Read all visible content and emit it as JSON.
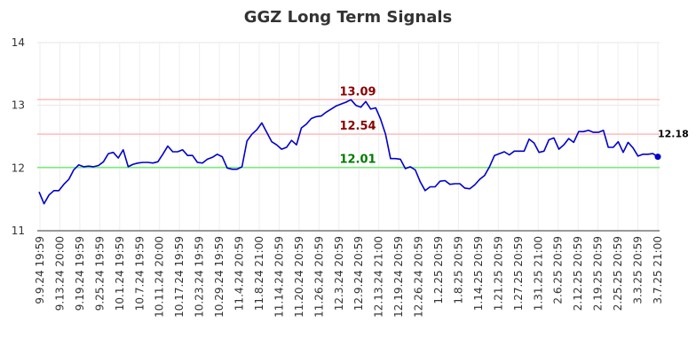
{
  "chart_data": {
    "type": "line",
    "title": "GGZ Long Term Signals",
    "xlabel": "",
    "ylabel": "",
    "ylim": [
      11,
      14
    ],
    "yticks": [
      11,
      12,
      13,
      14
    ],
    "grid": true,
    "x_tick_labels": [
      "9.9.24 19:59",
      "9.13.24 20:00",
      "9.19.24 19:59",
      "9.25.24 19:59",
      "10.1.24 19:59",
      "10.7.24 19:59",
      "10.11.24 20:00",
      "10.17.24 19:59",
      "10.23.24 19:59",
      "10.29.24 19:59",
      "11.4.24 20:59",
      "11.8.24 21:00",
      "11.14.24 20:59",
      "11.20.24 20:59",
      "11.26.24 20:59",
      "12.3.24 20:59",
      "12.9.24 20:59",
      "12.13.24 21:00",
      "12.19.24 20:59",
      "12.26.24 20:59",
      "1.2.25 20:59",
      "1.8.25 20:59",
      "1.14.25 20:59",
      "1.21.25 20:59",
      "1.27.25 20:59",
      "1.31.25 21:00",
      "2.6.25 20:59",
      "2.12.25 20:59",
      "2.19.25 20:59",
      "2.25.25 20:59",
      "3.3.25 20:59",
      "3.7.25 21:00"
    ],
    "series": [
      {
        "color": "#0000cc",
        "values": [
          11.62,
          11.43,
          11.57,
          11.64,
          11.64,
          11.74,
          11.82,
          11.97,
          12.05,
          12.02,
          12.03,
          12.02,
          12.04,
          12.1,
          12.23,
          12.25,
          12.16,
          12.29,
          12.02,
          12.06,
          12.08,
          12.09,
          12.09,
          12.08,
          12.1,
          12.22,
          12.35,
          12.26,
          12.26,
          12.29,
          12.2,
          12.2,
          12.09,
          12.08,
          12.14,
          12.17,
          12.22,
          12.18,
          12.0,
          11.98,
          11.98,
          12.02,
          12.43,
          12.54,
          12.61,
          12.72,
          12.57,
          12.42,
          12.37,
          12.3,
          12.33,
          12.44,
          12.37,
          12.64,
          12.7,
          12.79,
          12.82,
          12.83,
          12.89,
          12.94,
          12.99,
          13.02,
          13.05,
          13.09,
          13.0,
          12.97,
          13.06,
          12.94,
          12.96,
          12.78,
          12.54,
          12.15,
          12.15,
          12.14,
          11.99,
          12.02,
          11.97,
          11.78,
          11.64,
          11.7,
          11.7,
          11.79,
          11.8,
          11.74,
          11.75,
          11.75,
          11.68,
          11.67,
          11.73,
          11.82,
          11.88,
          12.02,
          12.2,
          12.23,
          12.26,
          12.21,
          12.27,
          12.27,
          12.27,
          12.46,
          12.4,
          12.25,
          12.27,
          12.45,
          12.48,
          12.3,
          12.37,
          12.47,
          12.41,
          12.58,
          12.58,
          12.6,
          12.57,
          12.57,
          12.6,
          12.33,
          12.33,
          12.42,
          12.25,
          12.41,
          12.32,
          12.19,
          12.22,
          12.22,
          12.23,
          12.18
        ]
      }
    ],
    "reference_lines": [
      {
        "label": "13.09",
        "value": 13.09,
        "line_color": "#ffbbbb",
        "label_color": "#8b0000"
      },
      {
        "label": "12.54",
        "value": 12.54,
        "line_color": "#ffbbbb",
        "label_color": "#8b0000"
      },
      {
        "label": "12.01",
        "value": 12.01,
        "line_color": "#77ee77",
        "label_color": "#007a00"
      }
    ],
    "last_value_label": "12.18"
  }
}
